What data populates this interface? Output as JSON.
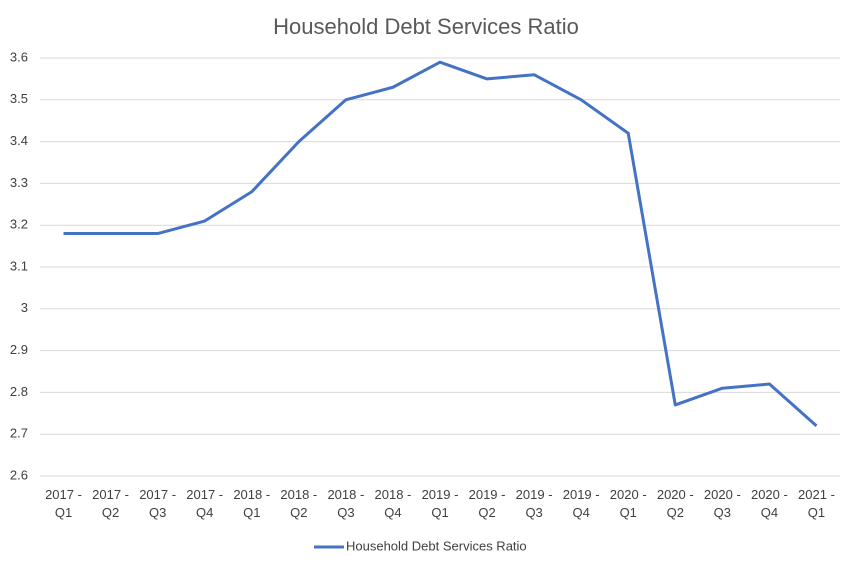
{
  "chart_data": {
    "type": "line",
    "title": "Household Debt Services Ratio",
    "categories": [
      "2017 - Q1",
      "2017 - Q2",
      "2017 - Q3",
      "2017 - Q4",
      "2018 - Q1",
      "2018 - Q2",
      "2018 - Q3",
      "2018 - Q4",
      "2019 - Q1",
      "2019 - Q2",
      "2019 - Q3",
      "2019 - Q4",
      "2020 - Q1",
      "2020 - Q2",
      "2020 - Q3",
      "2020 - Q4",
      "2021 - Q1"
    ],
    "series": [
      {
        "name": "Household Debt Services Ratio",
        "color": "#4472c4",
        "values": [
          3.18,
          3.18,
          3.18,
          3.21,
          3.28,
          3.4,
          3.5,
          3.53,
          3.59,
          3.55,
          3.56,
          3.5,
          3.42,
          2.77,
          2.81,
          2.82,
          2.72
        ]
      }
    ],
    "ylim": [
      2.6,
      3.6
    ],
    "yticks": [
      2.6,
      2.7,
      2.8,
      2.9,
      3,
      3.1,
      3.2,
      3.3,
      3.4,
      3.5,
      3.6
    ],
    "grid": true,
    "legend": "bottom"
  }
}
